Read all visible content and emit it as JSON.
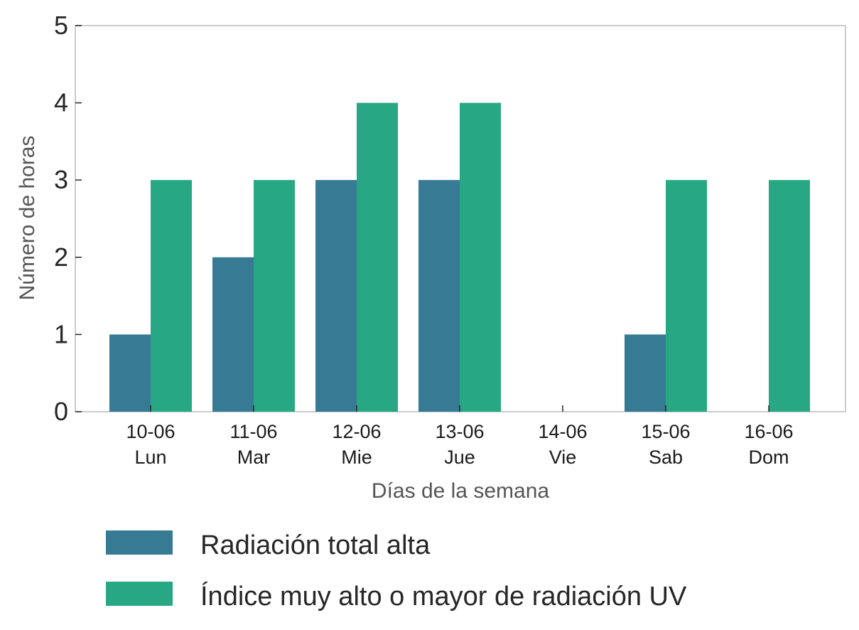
{
  "chart_data": {
    "type": "bar",
    "title": "",
    "xlabel": "Días de la semana",
    "ylabel": "Número de horas",
    "ylim": [
      0,
      5
    ],
    "yticks": [
      "0",
      "1",
      "2",
      "3",
      "4",
      "5"
    ],
    "categories": [
      {
        "date": "10-06",
        "day": "Lun"
      },
      {
        "date": "11-06",
        "day": "Mar"
      },
      {
        "date": "12-06",
        "day": "Mie"
      },
      {
        "date": "13-06",
        "day": "Jue"
      },
      {
        "date": "14-06",
        "day": "Vie"
      },
      {
        "date": "15-06",
        "day": "Sab"
      },
      {
        "date": "16-06",
        "day": "Dom"
      }
    ],
    "series": [
      {
        "name": "Radiación total alta",
        "color": "#377a94",
        "values": [
          1,
          2,
          3,
          3,
          0,
          1,
          0
        ]
      },
      {
        "name": "Índice muy alto o mayor de radiación UV",
        "color": "#28a785",
        "values": [
          3,
          3,
          4,
          4,
          0,
          3,
          3
        ]
      }
    ],
    "grid": false,
    "legend": "bottom"
  }
}
